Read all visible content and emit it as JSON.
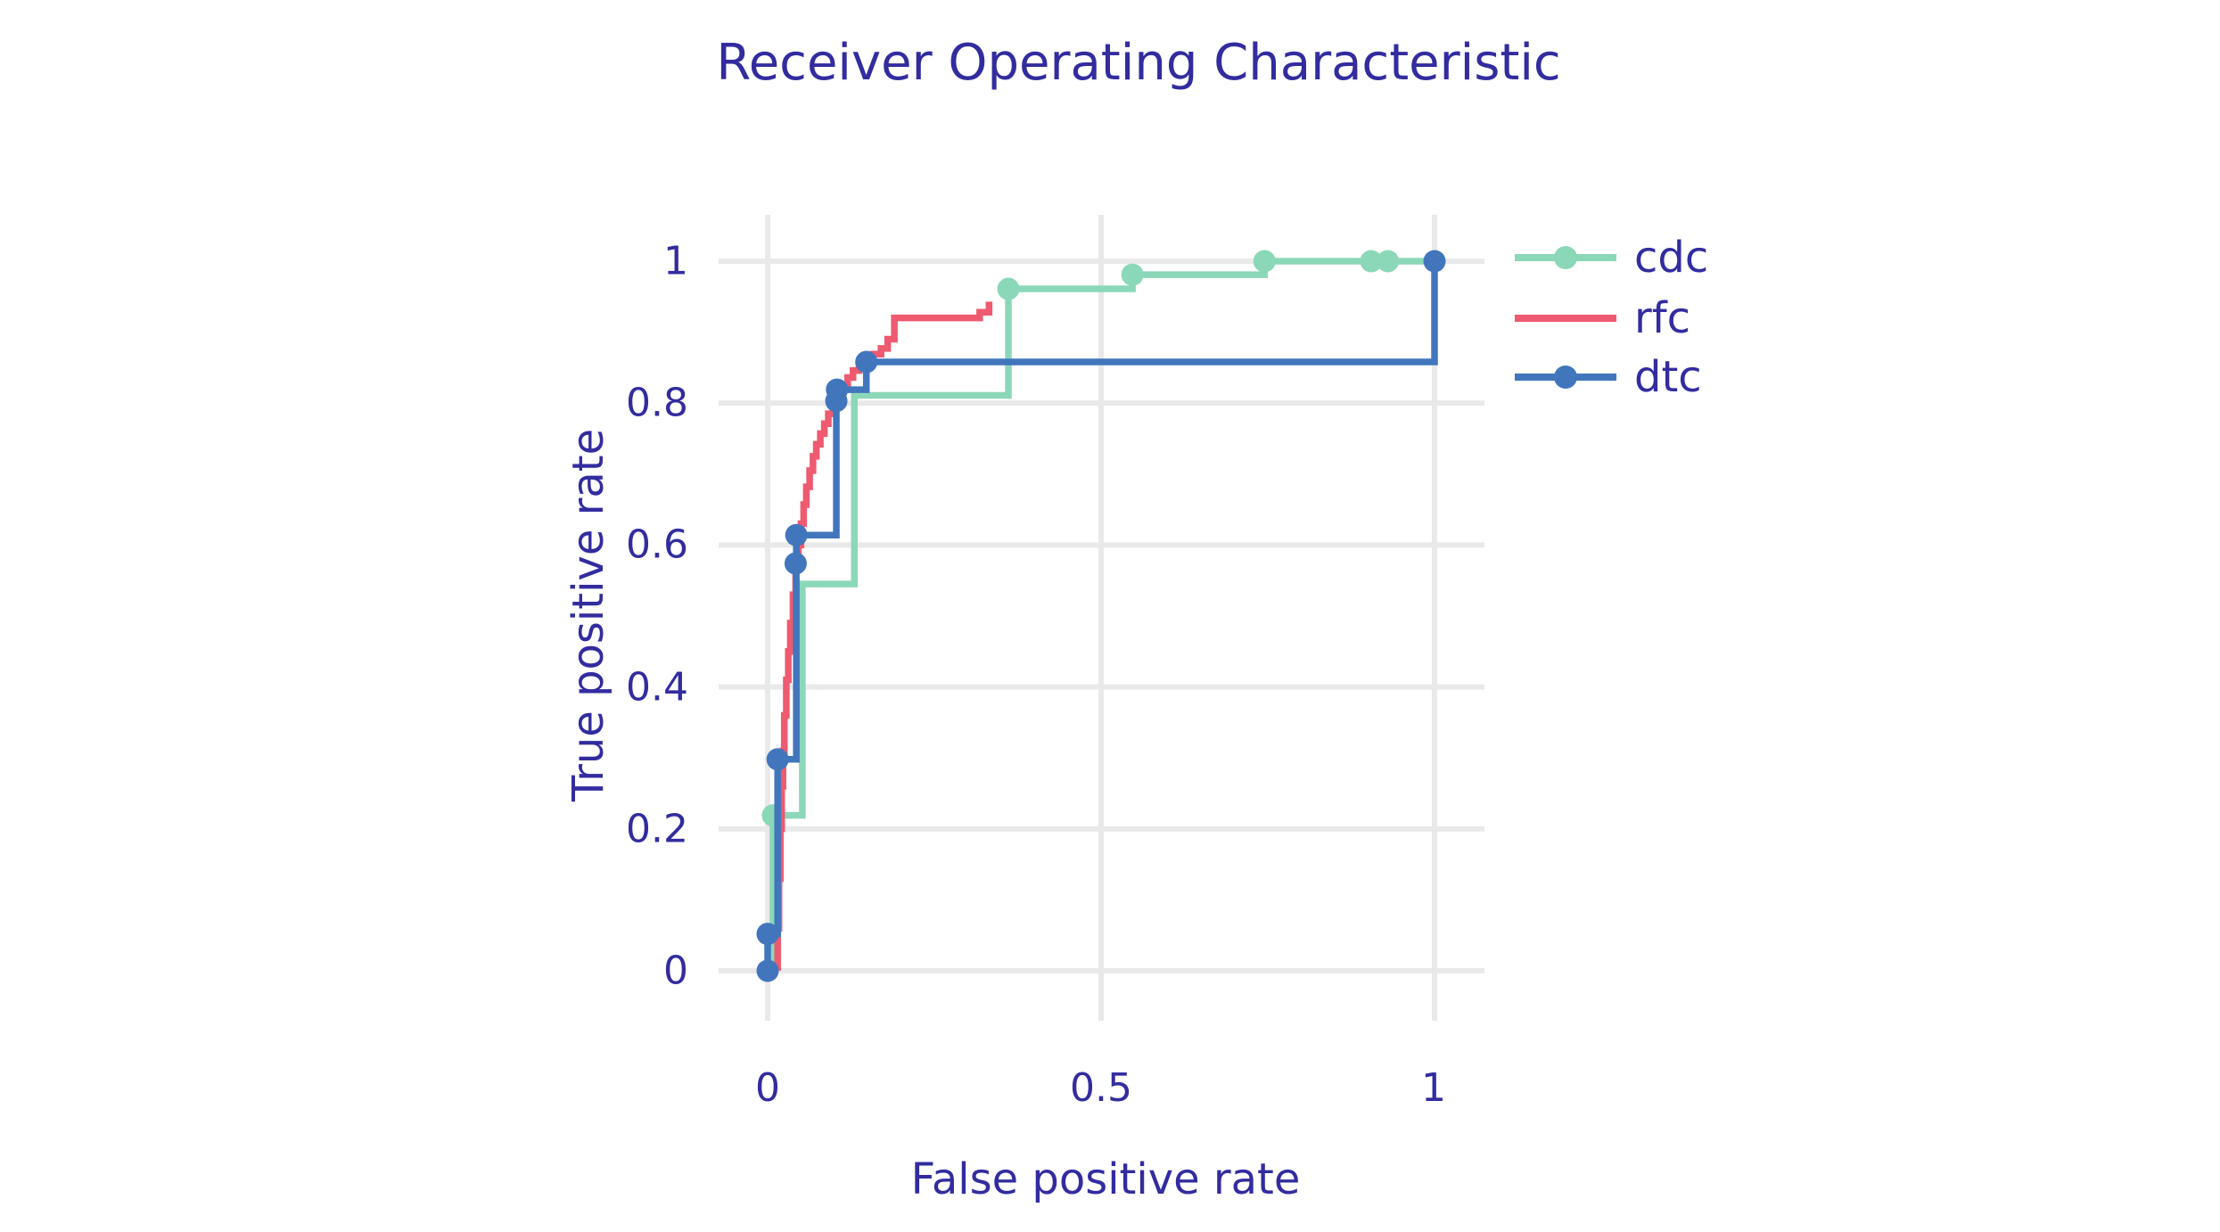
{
  "title": "Receiver Operating Characteristic",
  "colors": {
    "text": "#322C9F",
    "grid": "#E9E9E9",
    "background": "#FFFFFF",
    "cdc": "#8BD8B8",
    "rfc": "#EE5A6F",
    "dtc": "#4176BD"
  },
  "axes": {
    "x_label": "False positive rate",
    "y_label": "True positive rate",
    "x_tick_labels": [
      "0",
      "0.5",
      "1"
    ],
    "y_tick_labels": [
      "0",
      "0.2",
      "0.4",
      "0.6",
      "0.8",
      "1"
    ]
  },
  "legend": {
    "items": [
      {
        "label": "cdc",
        "marker": true
      },
      {
        "label": "rfc",
        "marker": false
      },
      {
        "label": "dtc",
        "marker": true
      }
    ]
  },
  "chart_data": {
    "type": "line",
    "subtype": "roc-step-curves",
    "title": "Receiver Operating Characteristic",
    "xlabel": "False positive rate",
    "ylabel": "True positive rate",
    "xlim": [
      -0.076,
      1.075
    ],
    "ylim": [
      -0.07,
      1.07
    ],
    "x_ticks": [
      0,
      0.5,
      1
    ],
    "y_ticks": [
      0,
      0.2,
      0.4,
      0.6,
      0.8,
      1
    ],
    "grid": true,
    "legend_position": "right-top",
    "series": [
      {
        "name": "cdc",
        "color": "#8BD8B8",
        "mode": "lines+markers",
        "line_width": 7.5,
        "points": [
          [
            0.008,
            0
          ],
          [
            0.008,
            0.219
          ],
          [
            0.052,
            0.219
          ],
          [
            0.052,
            0.545
          ],
          [
            0.13,
            0.545
          ],
          [
            0.13,
            0.811
          ],
          [
            0.361,
            0.811
          ],
          [
            0.361,
            0.961
          ],
          [
            0.547,
            0.961
          ],
          [
            0.547,
            0.981
          ],
          [
            0.745,
            0.981
          ],
          [
            0.745,
            1.0
          ],
          [
            1.0,
            1.0
          ]
        ],
        "marker_points": [
          [
            0.008,
            0.219
          ],
          [
            0.361,
            0.961
          ],
          [
            0.547,
            0.981
          ],
          [
            0.745,
            1.0
          ],
          [
            0.905,
            1.0
          ],
          [
            0.93,
            1.0
          ]
        ]
      },
      {
        "name": "rfc",
        "color": "#EE5A6F",
        "mode": "lines",
        "line_width": 7.5,
        "points": [
          [
            0.015,
            0
          ],
          [
            0.015,
            0.06
          ],
          [
            0.017,
            0.06
          ],
          [
            0.017,
            0.13
          ],
          [
            0.019,
            0.13
          ],
          [
            0.019,
            0.2
          ],
          [
            0.021,
            0.2
          ],
          [
            0.021,
            0.26
          ],
          [
            0.023,
            0.26
          ],
          [
            0.023,
            0.31
          ],
          [
            0.025,
            0.31
          ],
          [
            0.025,
            0.36
          ],
          [
            0.028,
            0.36
          ],
          [
            0.028,
            0.41
          ],
          [
            0.031,
            0.41
          ],
          [
            0.031,
            0.45
          ],
          [
            0.034,
            0.45
          ],
          [
            0.034,
            0.49
          ],
          [
            0.038,
            0.49
          ],
          [
            0.038,
            0.53
          ],
          [
            0.042,
            0.53
          ],
          [
            0.042,
            0.565
          ],
          [
            0.046,
            0.565
          ],
          [
            0.046,
            0.6
          ],
          [
            0.05,
            0.6
          ],
          [
            0.05,
            0.63
          ],
          [
            0.054,
            0.63
          ],
          [
            0.054,
            0.657
          ],
          [
            0.058,
            0.657
          ],
          [
            0.058,
            0.682
          ],
          [
            0.063,
            0.682
          ],
          [
            0.063,
            0.705
          ],
          [
            0.068,
            0.705
          ],
          [
            0.068,
            0.725
          ],
          [
            0.073,
            0.725
          ],
          [
            0.073,
            0.742
          ],
          [
            0.079,
            0.742
          ],
          [
            0.079,
            0.757
          ],
          [
            0.085,
            0.757
          ],
          [
            0.085,
            0.771
          ],
          [
            0.091,
            0.771
          ],
          [
            0.091,
            0.785
          ],
          [
            0.098,
            0.785
          ],
          [
            0.098,
            0.8
          ],
          [
            0.105,
            0.8
          ],
          [
            0.105,
            0.813
          ],
          [
            0.112,
            0.813
          ],
          [
            0.112,
            0.825
          ],
          [
            0.12,
            0.825
          ],
          [
            0.12,
            0.836
          ],
          [
            0.128,
            0.836
          ],
          [
            0.128,
            0.846
          ],
          [
            0.137,
            0.846
          ],
          [
            0.137,
            0.855
          ],
          [
            0.147,
            0.855
          ],
          [
            0.147,
            0.862
          ],
          [
            0.158,
            0.862
          ],
          [
            0.158,
            0.869
          ],
          [
            0.17,
            0.869
          ],
          [
            0.17,
            0.877
          ],
          [
            0.18,
            0.877
          ],
          [
            0.18,
            0.89
          ],
          [
            0.19,
            0.89
          ],
          [
            0.19,
            0.92
          ],
          [
            0.318,
            0.92
          ],
          [
            0.318,
            0.928
          ],
          [
            0.332,
            0.928
          ],
          [
            0.332,
            0.943
          ]
        ],
        "marker_points": []
      },
      {
        "name": "dtc",
        "color": "#4176BD",
        "mode": "lines+markers",
        "line_width": 7.5,
        "points": [
          [
            0,
            0
          ],
          [
            0,
            0.052
          ],
          [
            0.015,
            0.052
          ],
          [
            0.015,
            0.298
          ],
          [
            0.043,
            0.298
          ],
          [
            0.043,
            0.614
          ],
          [
            0.103,
            0.614
          ],
          [
            0.103,
            0.819
          ],
          [
            0.148,
            0.819
          ],
          [
            0.148,
            0.858
          ],
          [
            1.0,
            0.858
          ],
          [
            1.0,
            1.0
          ]
        ],
        "marker_points": [
          [
            0,
            0
          ],
          [
            0,
            0.052
          ],
          [
            0.015,
            0.298
          ],
          [
            0.042,
            0.574
          ],
          [
            0.043,
            0.614
          ],
          [
            0.103,
            0.803
          ],
          [
            0.104,
            0.819
          ],
          [
            0.148,
            0.858
          ],
          [
            1.0,
            1.0
          ]
        ]
      }
    ]
  }
}
